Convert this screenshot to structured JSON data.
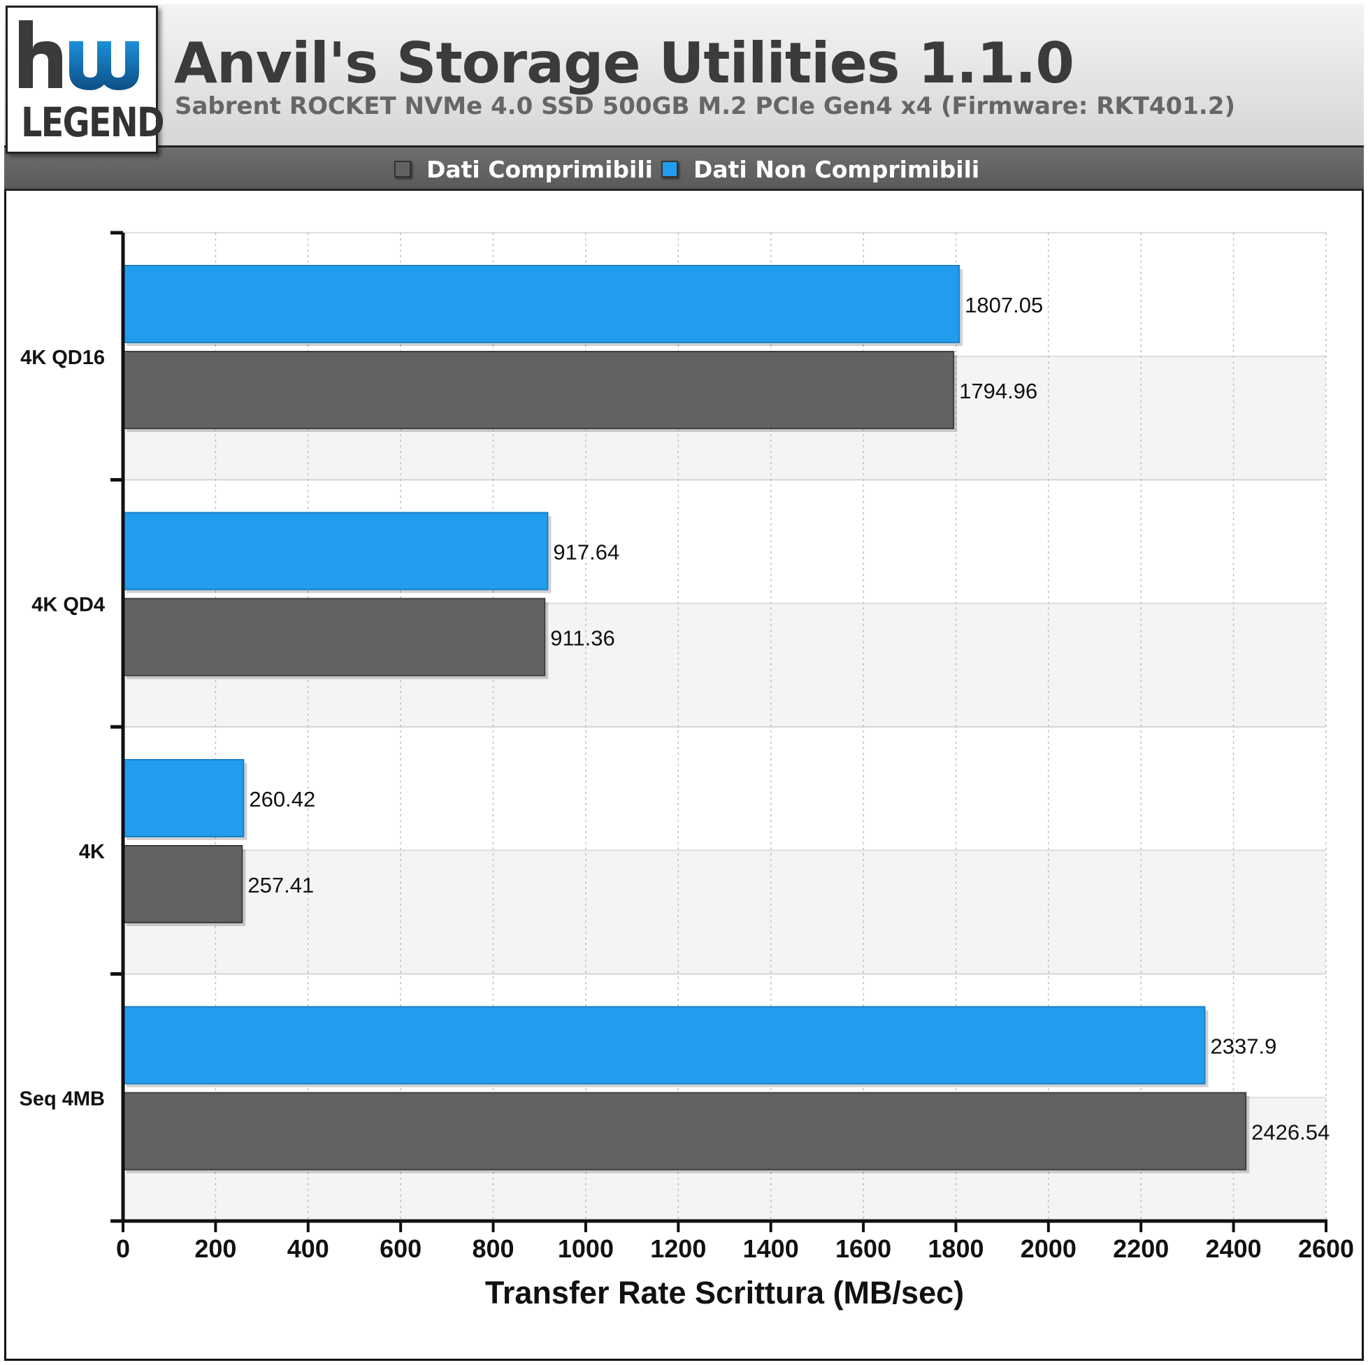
{
  "header": {
    "logo_text": "LEGEND",
    "title": "Anvil's Storage Utilities 1.1.0",
    "subtitle": "Sabrent ROCKET NVMe 4.0 SSD 500GB M.2 PCIe Gen4 x4 (Firmware: RKT401.2)"
  },
  "legend": {
    "items": [
      {
        "label": "Dati Comprimibili",
        "color": "#626262"
      },
      {
        "label": "Dati Non Comprimibili",
        "color": "#229ded"
      }
    ]
  },
  "chart_data": {
    "type": "bar",
    "orientation": "horizontal",
    "categories": [
      "4K QD16",
      "4K QD4",
      "4K",
      "Seq 4MB"
    ],
    "series": [
      {
        "name": "Dati Non Comprimibili",
        "color": "#229ded",
        "values": [
          1807.05,
          917.64,
          260.42,
          2337.9
        ],
        "labels": [
          "1807.05",
          "917.64",
          "260.42",
          "2337.9"
        ]
      },
      {
        "name": "Dati Comprimibili",
        "color": "#626262",
        "values": [
          1794.96,
          911.36,
          257.41,
          2426.54
        ],
        "labels": [
          "1794.96",
          "911.36",
          "257.41",
          "2426.54"
        ]
      }
    ],
    "xlabel": "Transfer Rate Scrittura (MB/sec)",
    "xlim": [
      0,
      2600
    ],
    "xticks": [
      0,
      200,
      400,
      600,
      800,
      1000,
      1200,
      1400,
      1600,
      1800,
      2000,
      2200,
      2400,
      2600
    ],
    "grid": true,
    "legend_position": "top"
  }
}
